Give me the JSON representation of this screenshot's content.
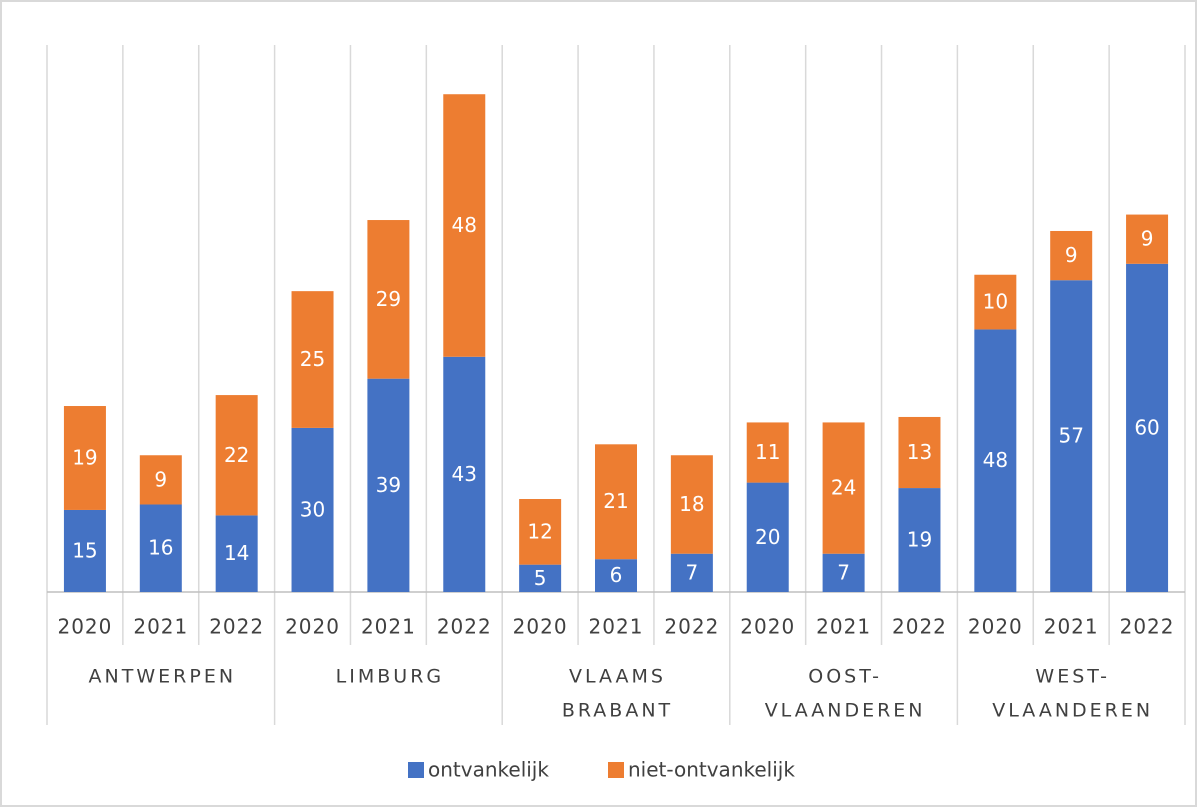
{
  "chart_data": {
    "type": "stacked_bar",
    "categories": [
      "2020",
      "2021",
      "2022",
      "2020",
      "2021",
      "2022",
      "2020",
      "2021",
      "2022",
      "2020",
      "2021",
      "2022",
      "2020",
      "2021",
      "2022"
    ],
    "groups": [
      {
        "label": [
          "ANTWERPEN"
        ],
        "size": 3
      },
      {
        "label": [
          "LIMBURG"
        ],
        "size": 3
      },
      {
        "label": [
          "VLAAMS",
          "BRABANT"
        ],
        "size": 3
      },
      {
        "label": [
          "OOST-",
          "VLAANDEREN"
        ],
        "size": 3
      },
      {
        "label": [
          "WEST-",
          "VLAANDEREN"
        ],
        "size": 3
      }
    ],
    "series": [
      {
        "name": "ontvankelijk",
        "color": "#4472c4",
        "values": [
          15,
          16,
          14,
          30,
          39,
          43,
          5,
          6,
          7,
          20,
          7,
          19,
          48,
          57,
          60
        ]
      },
      {
        "name": "niet-ontvankelijk",
        "color": "#ed7d31",
        "values": [
          19,
          9,
          22,
          25,
          29,
          48,
          12,
          21,
          18,
          11,
          24,
          13,
          10,
          9,
          9
        ]
      }
    ],
    "ylim": [
      0,
      100
    ],
    "legend": "bottom"
  }
}
